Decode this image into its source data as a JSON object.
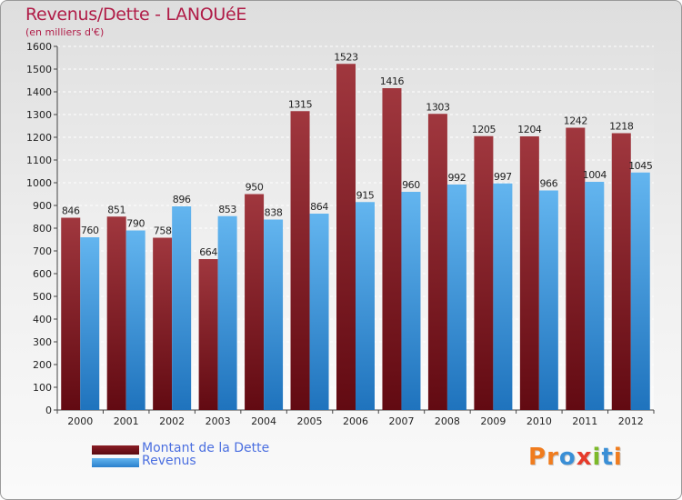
{
  "header": {
    "title": "Revenus/Dette - LANOUéE",
    "subtitle": "(en milliers d'€)"
  },
  "logo": {
    "text": "Proxiti",
    "letters": [
      "P",
      "r",
      "o",
      "x",
      "i",
      "t",
      "i"
    ],
    "colors": [
      "#f07c1e",
      "#f07c1e",
      "#3a8fd6",
      "#e63a2a",
      "#7cb929",
      "#3a8fd6",
      "#f07c1e"
    ]
  },
  "chart_data": {
    "type": "bar",
    "title": "Revenus/Dette - LANOUéE",
    "subtitle": "(en milliers d'€)",
    "categories": [
      "2000",
      "2001",
      "2002",
      "2003",
      "2004",
      "2005",
      "2006",
      "2007",
      "2008",
      "2009",
      "2010",
      "2011",
      "2012"
    ],
    "series": [
      {
        "name": "Montant de la Dette",
        "color": "#7a1118",
        "values": [
          846,
          851,
          758,
          664,
          950,
          1315,
          1523,
          1416,
          1303,
          1205,
          1204,
          1242,
          1218
        ]
      },
      {
        "name": "Revenus",
        "color": "#3f9be0",
        "values": [
          760,
          790,
          896,
          853,
          838,
          864,
          915,
          960,
          992,
          997,
          966,
          1004,
          1045
        ]
      }
    ],
    "ylim": [
      0,
      1600
    ],
    "yticks": [
      0,
      100,
      200,
      300,
      400,
      500,
      600,
      700,
      800,
      900,
      1000,
      1100,
      1200,
      1300,
      1400,
      1500,
      1600
    ],
    "grid": true,
    "legend": "bottom-left"
  }
}
